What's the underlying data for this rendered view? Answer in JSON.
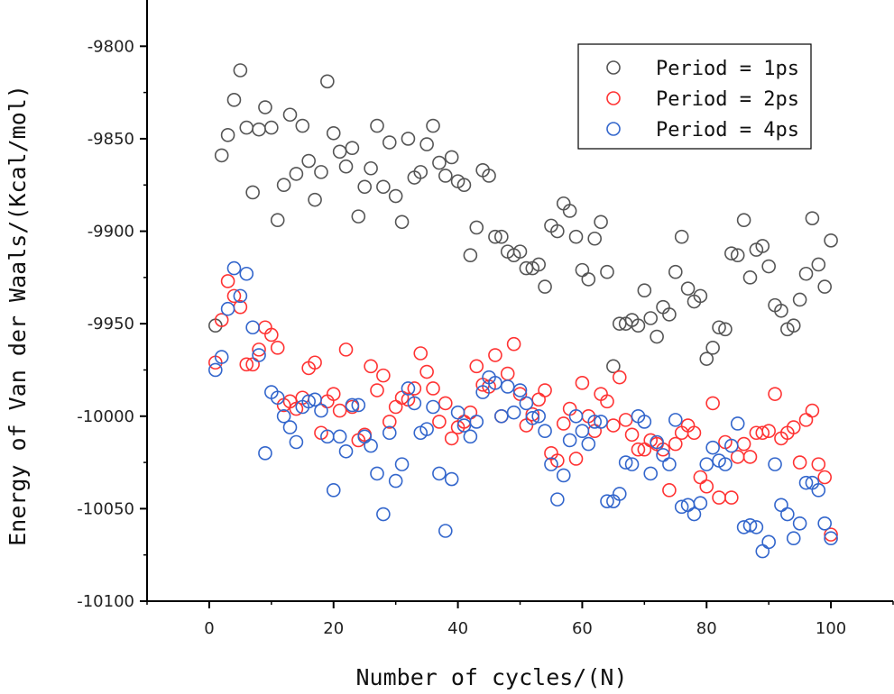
{
  "chart_data": {
    "type": "scatter",
    "title": "",
    "xlabel": "Number of cycles/(N)",
    "ylabel": "Energy of Van der Waals/(Kcal/mol)",
    "xlim": [
      -10,
      110
    ],
    "ylim": [
      -10100,
      -9775
    ],
    "xticks": [
      0,
      20,
      40,
      60,
      80,
      100
    ],
    "xtick_labels": [
      "0",
      "20",
      "40",
      "60",
      "80",
      "100"
    ],
    "yticks": [
      -10100,
      -10050,
      -10000,
      -9950,
      -9900,
      -9850,
      -9800
    ],
    "ytick_labels": [
      "-10100",
      "-10050",
      "-10000",
      "-9950",
      "-9900",
      "-9850",
      "-9800"
    ],
    "grid": false,
    "legend_position": "top-right",
    "marker": "open-circle",
    "series": [
      {
        "name": "Period = 1ps",
        "color": "#555555",
        "x": [
          1,
          2,
          3,
          4,
          5,
          6,
          7,
          8,
          9,
          10,
          11,
          12,
          13,
          14,
          15,
          16,
          17,
          18,
          19,
          20,
          21,
          22,
          23,
          24,
          25,
          26,
          27,
          28,
          29,
          30,
          31,
          32,
          33,
          34,
          35,
          36,
          37,
          38,
          39,
          40,
          41,
          42,
          43,
          44,
          45,
          46,
          47,
          48,
          49,
          50,
          51,
          52,
          53,
          54,
          55,
          56,
          57,
          58,
          59,
          60,
          61,
          62,
          63,
          64,
          65,
          66,
          67,
          68,
          69,
          70,
          71,
          72,
          73,
          74,
          75,
          76,
          77,
          78,
          79,
          80,
          81,
          82,
          83,
          84,
          85,
          86,
          87,
          88,
          89,
          90,
          91,
          92,
          93,
          94,
          95,
          96,
          97,
          98,
          99,
          100
        ],
        "y": [
          -9951,
          -9859,
          -9848,
          -9829,
          -9813,
          -9844,
          -9879,
          -9845,
          -9833,
          -9844,
          -9894,
          -9875,
          -9837,
          -9869,
          -9843,
          -9862,
          -9883,
          -9868,
          -9819,
          -9847,
          -9857,
          -9865,
          -9855,
          -9892,
          -9876,
          -9866,
          -9843,
          -9876,
          -9852,
          -9881,
          -9895,
          -9850,
          -9871,
          -9868,
          -9853,
          -9843,
          -9863,
          -9870,
          -9860,
          -9873,
          -9875,
          -9913,
          -9898,
          -9867,
          -9870,
          -9903,
          -9903,
          -9911,
          -9913,
          -9911,
          -9920,
          -9920,
          -9918,
          -9930,
          -9897,
          -9900,
          -9885,
          -9889,
          -9903,
          -9921,
          -9926,
          -9904,
          -9895,
          -9922,
          -9973,
          -9950,
          -9950,
          -9948,
          -9951,
          -9932,
          -9947,
          -9957,
          -9941,
          -9945,
          -9922,
          -9903,
          -9931,
          -9938,
          -9935,
          -9969,
          -9963,
          -9952,
          -9953,
          -9912,
          -9913,
          -9894,
          -9925,
          -9910,
          -9908,
          -9919,
          -9940,
          -9943,
          -9953,
          -9951,
          -9937,
          -9923,
          -9893,
          -9918,
          -9930,
          -9905
        ]
      },
      {
        "name": "Period = 2ps",
        "color": "#ff3333",
        "x": [
          1,
          2,
          3,
          4,
          5,
          6,
          7,
          8,
          9,
          10,
          11,
          12,
          13,
          14,
          15,
          16,
          17,
          18,
          19,
          20,
          21,
          22,
          23,
          24,
          25,
          26,
          27,
          28,
          29,
          30,
          31,
          32,
          33,
          34,
          35,
          36,
          37,
          38,
          39,
          40,
          41,
          42,
          43,
          44,
          45,
          46,
          47,
          48,
          49,
          50,
          51,
          52,
          53,
          54,
          55,
          56,
          57,
          58,
          59,
          60,
          61,
          62,
          63,
          64,
          65,
          66,
          67,
          68,
          69,
          70,
          71,
          72,
          73,
          74,
          75,
          76,
          77,
          78,
          79,
          80,
          81,
          82,
          83,
          84,
          85,
          86,
          87,
          88,
          89,
          90,
          91,
          92,
          93,
          94,
          95,
          96,
          97,
          98,
          99,
          100
        ],
        "y": [
          -9971,
          -9948,
          -9927,
          -9935,
          -9941,
          -9972,
          -9972,
          -9964,
          -9952,
          -9956,
          -9963,
          -9994,
          -9992,
          -9996,
          -9990,
          -9974,
          -9971,
          -10009,
          -9992,
          -9988,
          -9997,
          -9964,
          -9995,
          -10013,
          -10010,
          -9973,
          -9986,
          -9978,
          -10003,
          -9995,
          -9990,
          -9991,
          -9985,
          -9966,
          -9976,
          -9985,
          -10003,
          -9993,
          -10012,
          -10006,
          -10003,
          -9998,
          -9973,
          -9983,
          -9984,
          -9967,
          -10000,
          -9977,
          -9961,
          -9988,
          -10005,
          -9999,
          -9991,
          -9986,
          -10020,
          -10024,
          -10004,
          -9996,
          -10023,
          -9982,
          -10000,
          -10008,
          -9988,
          -9992,
          -10005,
          -9979,
          -10002,
          -10010,
          -10018,
          -10018,
          -10013,
          -10015,
          -10018,
          -10040,
          -10015,
          -10009,
          -10005,
          -10009,
          -10033,
          -10038,
          -9993,
          -10044,
          -10014,
          -10044,
          -10022,
          -10015,
          -10022,
          -10009,
          -10009,
          -10008,
          -9988,
          -10012,
          -10009,
          -10006,
          -10025,
          -10002,
          -9997,
          -10026,
          -10033,
          -10064
        ]
      },
      {
        "name": "Period = 4ps",
        "color": "#3366cc",
        "x": [
          1,
          2,
          3,
          4,
          5,
          6,
          7,
          8,
          9,
          10,
          11,
          12,
          13,
          14,
          15,
          16,
          17,
          18,
          19,
          20,
          21,
          22,
          23,
          24,
          25,
          26,
          27,
          28,
          29,
          30,
          31,
          32,
          33,
          34,
          35,
          36,
          37,
          38,
          39,
          40,
          41,
          42,
          43,
          44,
          45,
          46,
          47,
          48,
          49,
          50,
          51,
          52,
          53,
          54,
          55,
          56,
          57,
          58,
          59,
          60,
          61,
          62,
          63,
          64,
          65,
          66,
          67,
          68,
          69,
          70,
          71,
          72,
          73,
          74,
          75,
          76,
          77,
          78,
          79,
          80,
          81,
          82,
          83,
          84,
          85,
          86,
          87,
          88,
          89,
          90,
          91,
          92,
          93,
          94,
          95,
          96,
          97,
          98,
          99,
          100
        ],
        "y": [
          -9975,
          -9968,
          -9942,
          -9920,
          -9935,
          -9923,
          -9952,
          -9967,
          -10020,
          -9987,
          -9990,
          -10000,
          -10006,
          -10014,
          -9995,
          -9992,
          -9991,
          -9997,
          -10011,
          -10040,
          -10011,
          -10019,
          -9994,
          -9994,
          -10011,
          -10016,
          -10031,
          -10053,
          -10009,
          -10035,
          -10026,
          -9985,
          -9993,
          -10009,
          -10007,
          -9995,
          -10031,
          -10062,
          -10034,
          -9998,
          -10005,
          -10011,
          -10003,
          -9987,
          -9979,
          -9982,
          -10000,
          -9984,
          -9998,
          -9986,
          -9993,
          -10001,
          -10000,
          -10008,
          -10026,
          -10045,
          -10032,
          -10013,
          -10000,
          -10008,
          -10015,
          -10003,
          -10003,
          -10046,
          -10046,
          -10042,
          -10025,
          -10026,
          -10000,
          -10003,
          -10031,
          -10014,
          -10021,
          -10026,
          -10002,
          -10049,
          -10048,
          -10053,
          -10047,
          -10026,
          -10017,
          -10024,
          -10026,
          -10016,
          -10004,
          -10060,
          -10059,
          -10060,
          -10073,
          -10068,
          -10026,
          -10048,
          -10053,
          -10066,
          -10058,
          -10036,
          -10036,
          -10040,
          -10058,
          -10066
        ]
      }
    ]
  }
}
